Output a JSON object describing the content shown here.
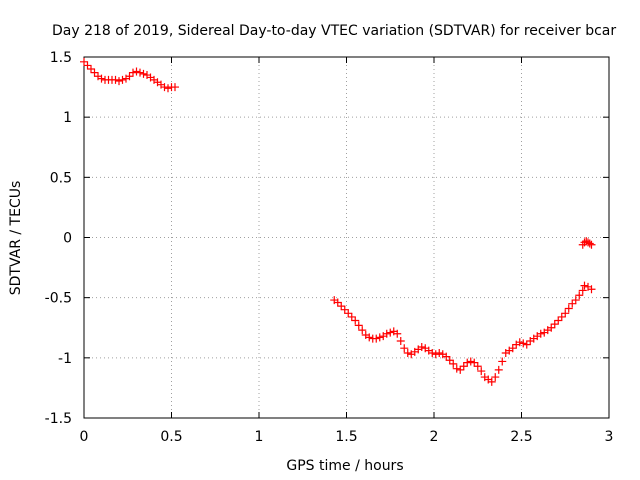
{
  "chart_data": {
    "type": "scatter",
    "title": "Day 218 of 2019, Sidereal Day-to-day VTEC variation (SDTVAR) for receiver bcar",
    "xlabel": "GPS time / hours",
    "ylabel": "SDTVAR / TECUs",
    "xlim": [
      0,
      3
    ],
    "ylim": [
      -1.5,
      1.5
    ],
    "x_ticks": [
      0,
      0.5,
      1,
      1.5,
      2,
      2.5,
      3
    ],
    "x_tick_labels": [
      "0",
      "0.5",
      "1",
      "1.5",
      "2",
      "2.5",
      "3"
    ],
    "y_ticks": [
      -1.5,
      -1,
      -0.5,
      0,
      0.5,
      1,
      1.5
    ],
    "y_tick_labels": [
      "-1.5",
      "-1",
      "-0.5",
      "0",
      "0.5",
      "1",
      "1.5"
    ],
    "grid": true,
    "marker": "+",
    "series": [
      {
        "name": "SDTVAR",
        "color": "#ff0000",
        "points": [
          [
            0.0,
            1.46
          ],
          [
            0.02,
            1.43
          ],
          [
            0.04,
            1.4
          ],
          [
            0.06,
            1.37
          ],
          [
            0.08,
            1.34
          ],
          [
            0.1,
            1.32
          ],
          [
            0.12,
            1.31
          ],
          [
            0.14,
            1.31
          ],
          [
            0.16,
            1.31
          ],
          [
            0.18,
            1.31
          ],
          [
            0.2,
            1.3
          ],
          [
            0.22,
            1.31
          ],
          [
            0.24,
            1.32
          ],
          [
            0.26,
            1.34
          ],
          [
            0.28,
            1.37
          ],
          [
            0.3,
            1.38
          ],
          [
            0.32,
            1.37
          ],
          [
            0.34,
            1.36
          ],
          [
            0.36,
            1.35
          ],
          [
            0.38,
            1.33
          ],
          [
            0.4,
            1.31
          ],
          [
            0.42,
            1.29
          ],
          [
            0.44,
            1.27
          ],
          [
            0.46,
            1.25
          ],
          [
            0.48,
            1.24
          ],
          [
            0.5,
            1.25
          ],
          [
            0.52,
            1.25
          ],
          [
            1.43,
            -0.52
          ],
          [
            1.45,
            -0.54
          ],
          [
            1.47,
            -0.57
          ],
          [
            1.49,
            -0.6
          ],
          [
            1.51,
            -0.63
          ],
          [
            1.53,
            -0.66
          ],
          [
            1.55,
            -0.69
          ],
          [
            1.57,
            -0.73
          ],
          [
            1.59,
            -0.77
          ],
          [
            1.61,
            -0.81
          ],
          [
            1.63,
            -0.83
          ],
          [
            1.65,
            -0.84
          ],
          [
            1.67,
            -0.84
          ],
          [
            1.69,
            -0.83
          ],
          [
            1.71,
            -0.82
          ],
          [
            1.73,
            -0.8
          ],
          [
            1.75,
            -0.79
          ],
          [
            1.77,
            -0.78
          ],
          [
            1.79,
            -0.8
          ],
          [
            1.81,
            -0.86
          ],
          [
            1.83,
            -0.92
          ],
          [
            1.85,
            -0.96
          ],
          [
            1.87,
            -0.97
          ],
          [
            1.89,
            -0.95
          ],
          [
            1.91,
            -0.93
          ],
          [
            1.93,
            -0.91
          ],
          [
            1.95,
            -0.92
          ],
          [
            1.97,
            -0.94
          ],
          [
            1.99,
            -0.96
          ],
          [
            2.01,
            -0.97
          ],
          [
            2.03,
            -0.96
          ],
          [
            2.05,
            -0.97
          ],
          [
            2.07,
            -0.99
          ],
          [
            2.09,
            -1.02
          ],
          [
            2.11,
            -1.05
          ],
          [
            2.13,
            -1.09
          ],
          [
            2.15,
            -1.1
          ],
          [
            2.17,
            -1.07
          ],
          [
            2.19,
            -1.04
          ],
          [
            2.21,
            -1.03
          ],
          [
            2.23,
            -1.04
          ],
          [
            2.25,
            -1.07
          ],
          [
            2.27,
            -1.11
          ],
          [
            2.29,
            -1.16
          ],
          [
            2.31,
            -1.18
          ],
          [
            2.33,
            -1.2
          ],
          [
            2.35,
            -1.16
          ],
          [
            2.37,
            -1.1
          ],
          [
            2.39,
            -1.03
          ],
          [
            2.41,
            -0.96
          ],
          [
            2.43,
            -0.94
          ],
          [
            2.45,
            -0.92
          ],
          [
            2.47,
            -0.89
          ],
          [
            2.49,
            -0.87
          ],
          [
            2.51,
            -0.88
          ],
          [
            2.53,
            -0.89
          ],
          [
            2.55,
            -0.86
          ],
          [
            2.57,
            -0.84
          ],
          [
            2.59,
            -0.82
          ],
          [
            2.61,
            -0.8
          ],
          [
            2.63,
            -0.79
          ],
          [
            2.65,
            -0.77
          ],
          [
            2.67,
            -0.75
          ],
          [
            2.69,
            -0.72
          ],
          [
            2.71,
            -0.69
          ],
          [
            2.73,
            -0.66
          ],
          [
            2.75,
            -0.63
          ],
          [
            2.77,
            -0.59
          ],
          [
            2.79,
            -0.55
          ],
          [
            2.81,
            -0.52
          ],
          [
            2.83,
            -0.48
          ],
          [
            2.85,
            -0.44
          ],
          [
            2.86,
            -0.4
          ],
          [
            2.88,
            -0.41
          ],
          [
            2.9,
            -0.43
          ],
          [
            2.85,
            -0.06
          ],
          [
            2.86,
            -0.04
          ],
          [
            2.87,
            -0.03
          ],
          [
            2.88,
            -0.04
          ],
          [
            2.89,
            -0.05
          ],
          [
            2.9,
            -0.06
          ]
        ]
      }
    ]
  }
}
